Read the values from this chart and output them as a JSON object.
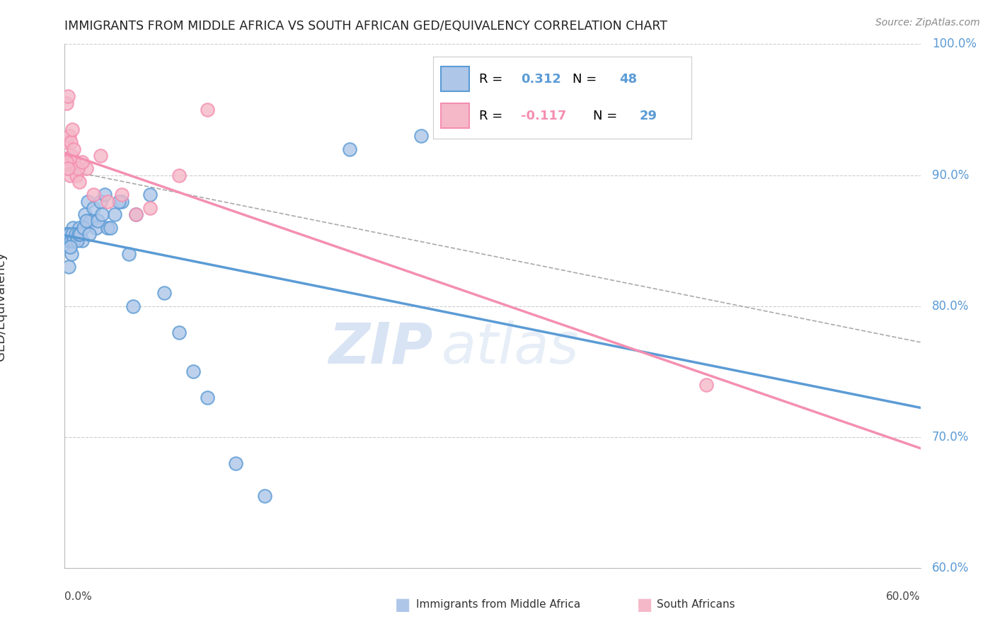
{
  "title": "IMMIGRANTS FROM MIDDLE AFRICA VS SOUTH AFRICAN GED/EQUIVALENCY CORRELATION CHART",
  "source": "Source: ZipAtlas.com",
  "ylabel": "GED/Equivalency",
  "y_ticks": [
    60.0,
    70.0,
    80.0,
    90.0,
    100.0
  ],
  "xlim": [
    0.0,
    60.0
  ],
  "ylim": [
    60.0,
    100.0
  ],
  "blue_scatter_x": [
    0.2,
    0.3,
    0.5,
    0.6,
    0.8,
    1.0,
    1.2,
    1.4,
    1.6,
    1.8,
    2.0,
    2.2,
    2.5,
    2.8,
    3.0,
    3.5,
    4.0,
    4.5,
    5.0,
    6.0,
    7.0,
    8.0,
    9.0,
    10.0,
    12.0,
    14.0,
    0.1,
    0.15,
    0.25,
    0.35,
    0.45,
    0.55,
    0.65,
    0.75,
    0.85,
    0.95,
    1.05,
    1.3,
    1.5,
    1.7,
    2.3,
    2.6,
    3.2,
    3.8,
    4.8,
    20.0,
    25.0,
    0.4
  ],
  "blue_scatter_y": [
    85.0,
    83.0,
    84.0,
    86.0,
    85.5,
    86.0,
    85.0,
    87.0,
    88.0,
    86.5,
    87.5,
    86.0,
    88.0,
    88.5,
    86.0,
    87.0,
    88.0,
    84.0,
    87.0,
    88.5,
    81.0,
    78.0,
    75.0,
    73.0,
    68.0,
    65.5,
    85.5,
    85.0,
    85.5,
    85.5,
    85.0,
    85.5,
    85.0,
    85.5,
    85.0,
    85.5,
    85.5,
    86.0,
    86.5,
    85.5,
    86.5,
    87.0,
    86.0,
    88.0,
    80.0,
    92.0,
    93.0,
    84.5
  ],
  "pink_scatter_x": [
    0.1,
    0.2,
    0.3,
    0.4,
    0.5,
    0.6,
    0.8,
    1.0,
    1.5,
    2.0,
    3.0,
    4.0,
    5.0,
    6.0,
    8.0,
    10.0,
    0.15,
    0.25,
    0.35,
    0.45,
    0.55,
    0.7,
    0.9,
    1.2,
    2.5,
    45.0,
    0.12,
    0.22,
    0.65
  ],
  "pink_scatter_y": [
    92.5,
    91.0,
    90.5,
    90.0,
    91.5,
    91.0,
    90.0,
    89.5,
    90.5,
    88.5,
    88.0,
    88.5,
    87.0,
    87.5,
    90.0,
    95.0,
    95.5,
    96.0,
    93.0,
    92.5,
    93.5,
    91.0,
    90.5,
    91.0,
    91.5,
    74.0,
    91.0,
    90.5,
    92.0
  ],
  "blue_color": "#5b9bd5",
  "pink_color": "#f48fb1",
  "blue_fill": "#aec6e8",
  "pink_fill": "#f4b8c8",
  "watermark_zip": "ZIP",
  "watermark_atlas": "atlas",
  "title_color": "#222222",
  "tick_color": "#5b9bd5",
  "grid_color": "#cccccc"
}
